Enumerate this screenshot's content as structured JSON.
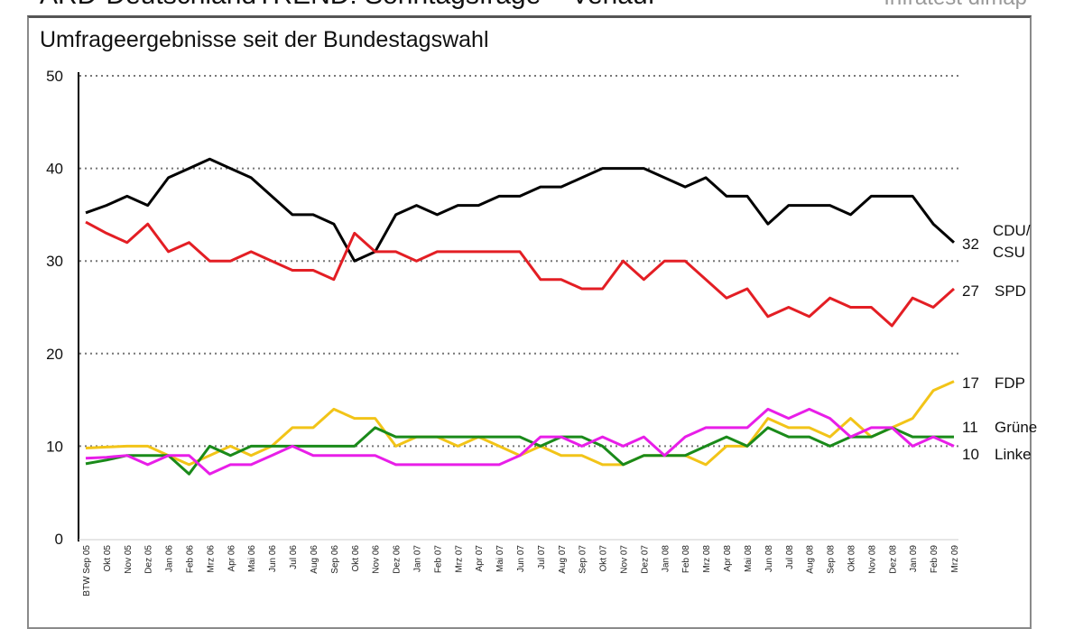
{
  "header": {
    "title": "ARD-DeutschlandTREND: Sonntagsfrage – Verlauf",
    "source": "Infratest dimap",
    "subtitle": "Umfrageergebnisse seit der Bundestagswahl"
  },
  "chart_data": {
    "type": "line",
    "title": "ARD-DeutschlandTREND: Sonntagsfrage – Verlauf",
    "subtitle": "Umfrageergebnisse seit der Bundestagswahl",
    "ylim": [
      0,
      50
    ],
    "yticks": [
      0,
      10,
      20,
      30,
      40,
      50
    ],
    "grid": "horizontal dotted",
    "categories": [
      "BTW Sep 05",
      "Okt 05",
      "Nov 05",
      "Dez 05",
      "Jan 06",
      "Feb 06",
      "Mrz 06",
      "Apr 06",
      "Mai 06",
      "Jun 06",
      "Jul 06",
      "Aug 06",
      "Sep 06",
      "Okt 06",
      "Nov 06",
      "Dez 06",
      "Jan 07",
      "Feb 07",
      "Mrz 07",
      "Apr 07",
      "Mai 07",
      "Jun 07",
      "Jul 07",
      "Aug 07",
      "Sep 07",
      "Okt 07",
      "Nov 07",
      "Dez 07",
      "Jan 08",
      "Feb 08",
      "Mrz 08",
      "Apr 08",
      "Mai 08",
      "Jun 08",
      "Jul 08",
      "Aug 08",
      "Sep 08",
      "Okt 08",
      "Nov 08",
      "Dez 08",
      "Jan 09",
      "Feb 09",
      "Mrz 09"
    ],
    "series": [
      {
        "name": "CDU/ CSU",
        "label_top": "CDU/",
        "label_bottom": "CSU",
        "end_value": "32",
        "color": "#000000",
        "values": [
          35.2,
          36,
          37,
          36,
          39,
          40,
          41,
          40,
          39,
          37,
          35,
          35,
          34,
          30,
          31,
          35,
          36,
          35,
          36,
          36,
          37,
          37,
          38,
          38,
          39,
          40,
          40,
          40,
          39,
          38,
          39,
          37,
          37,
          34,
          36,
          36,
          36,
          35,
          37,
          37,
          37,
          34,
          32
        ]
      },
      {
        "name": "SPD",
        "end_value": "27",
        "color": "#e31e24",
        "values": [
          34.2,
          33,
          32,
          34,
          31,
          32,
          30,
          30,
          31,
          30,
          29,
          29,
          28,
          33,
          31,
          31,
          30,
          31,
          31,
          31,
          31,
          31,
          28,
          28,
          27,
          27,
          30,
          28,
          30,
          30,
          28,
          26,
          27,
          24,
          25,
          24,
          26,
          25,
          25,
          23,
          26,
          25,
          27
        ]
      },
      {
        "name": "FDP",
        "end_value": "17",
        "color": "#f2c418",
        "values": [
          9.8,
          9.9,
          10,
          10,
          9,
          8,
          9,
          10,
          9,
          10,
          12,
          12,
          14,
          13,
          13,
          10,
          11,
          11,
          10,
          11,
          10,
          9,
          10,
          9,
          9,
          8,
          8,
          9,
          9,
          9,
          8,
          10,
          10,
          13,
          12,
          12,
          11,
          13,
          11,
          12,
          13,
          16,
          17
        ]
      },
      {
        "name": "Grüne",
        "end_value": "11",
        "color": "#1a8a1a",
        "values": [
          8.1,
          8.5,
          9,
          9,
          9,
          7,
          10,
          9,
          10,
          10,
          10,
          10,
          10,
          10,
          12,
          11,
          11,
          11,
          11,
          11,
          11,
          11,
          10,
          11,
          11,
          10,
          8,
          9,
          9,
          9,
          10,
          11,
          10,
          12,
          11,
          11,
          10,
          11,
          11,
          12,
          11,
          11,
          11
        ]
      },
      {
        "name": "Linke",
        "end_value": "10",
        "color": "#e81ee8",
        "values": [
          8.7,
          8.8,
          9,
          8,
          9,
          9,
          7,
          8,
          8,
          9,
          10,
          9,
          9,
          9,
          9,
          8,
          8,
          8,
          8,
          8,
          8,
          9,
          11,
          11,
          10,
          11,
          10,
          11,
          9,
          11,
          12,
          12,
          12,
          14,
          13,
          14,
          13,
          11,
          12,
          12,
          10,
          11,
          10
        ]
      }
    ]
  }
}
